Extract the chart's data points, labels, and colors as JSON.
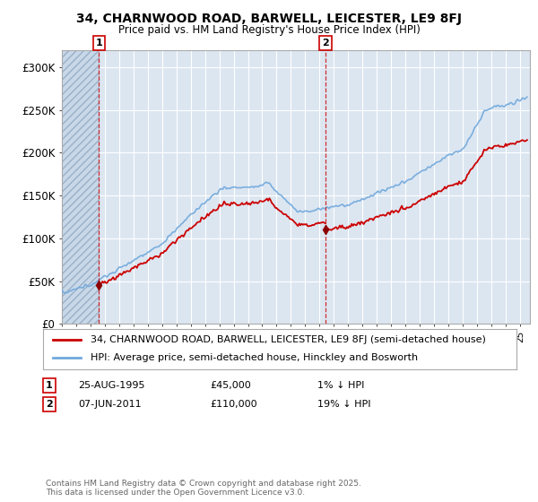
{
  "title": "34, CHARNWOOD ROAD, BARWELL, LEICESTER, LE9 8FJ",
  "subtitle": "Price paid vs. HM Land Registry's House Price Index (HPI)",
  "hpi_label": "HPI: Average price, semi-detached house, Hinckley and Bosworth",
  "price_label": "34, CHARNWOOD ROAD, BARWELL, LEICESTER, LE9 8FJ (semi-detached house)",
  "copyright": "Contains HM Land Registry data © Crown copyright and database right 2025.\nThis data is licensed under the Open Government Licence v3.0.",
  "transaction1_date": "25-AUG-1995",
  "transaction1_price": 45000,
  "transaction1_note": "1% ↓ HPI",
  "transaction2_date": "07-JUN-2011",
  "transaction2_price": 110000,
  "transaction2_note": "19% ↓ HPI",
  "ylim": [
    0,
    320000
  ],
  "yticks": [
    0,
    50000,
    100000,
    150000,
    200000,
    250000,
    300000
  ],
  "ytick_labels": [
    "£0",
    "£50K",
    "£100K",
    "£150K",
    "£200K",
    "£250K",
    "£300K"
  ],
  "hpi_color": "#6fa8dc",
  "price_color": "#cc0000",
  "background_color": "#dce6f1",
  "grid_color": "#ffffff",
  "vline_color": "#cc0000",
  "marker_color": "#8b0000",
  "fig_bg": "#ffffff"
}
